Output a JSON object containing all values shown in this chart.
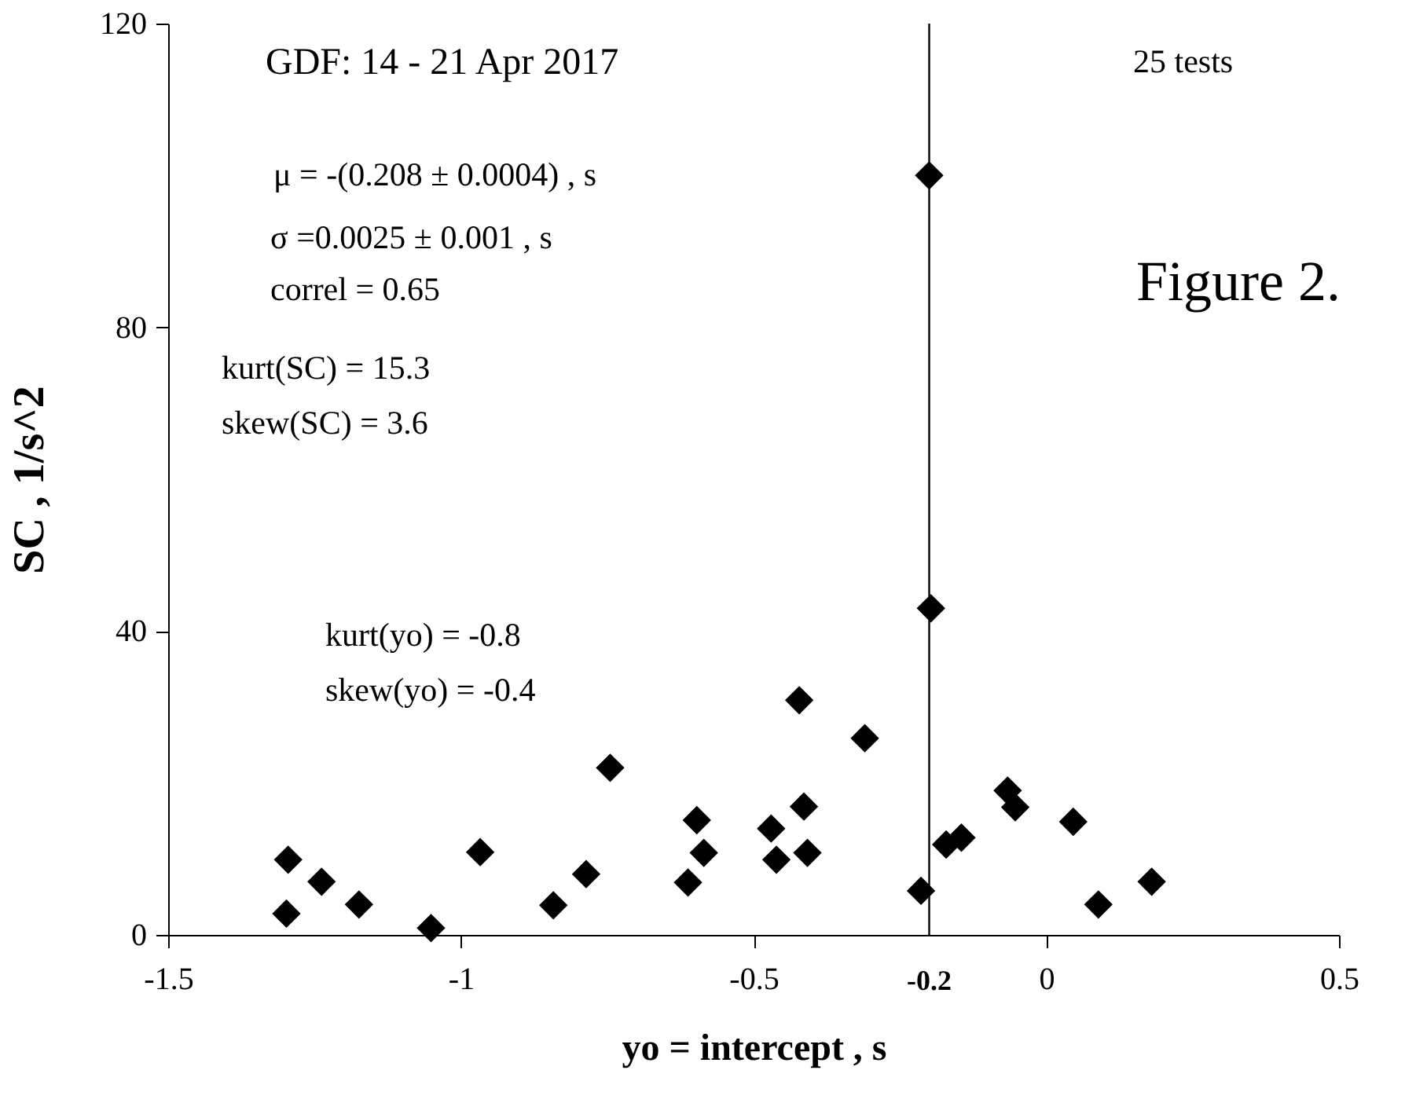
{
  "chart_data": {
    "type": "scatter",
    "xlabel": "yo = intercept  ,  s",
    "ylabel": "SC  ,  1/s^2",
    "x": [
      -1.295,
      -1.298,
      -1.238,
      -1.174,
      -1.051,
      -0.967,
      -0.842,
      -0.786,
      -0.745,
      -0.597,
      -0.585,
      -0.612,
      -0.2,
      -0.197,
      -0.422,
      -0.31,
      -0.414,
      -0.47,
      -0.461,
      -0.408,
      -0.214,
      -0.171,
      -0.145,
      -0.066,
      -0.053,
      0.046,
      0.089,
      0.18
    ],
    "series": [
      {
        "color": "#000000",
        "values": [
          9.9,
          2.8,
          7.0,
          4.0,
          0.9,
          10.9,
          3.9,
          8.0,
          22.0,
          15.1,
          10.8,
          6.9,
          100,
          43.0,
          30.9,
          25.9,
          16.9,
          14.0,
          9.9,
          10.8,
          5.8,
          11.9,
          12.8,
          19.0,
          16.8,
          14.9,
          4.0,
          7.0
        ]
      }
    ],
    "marker": "diamond",
    "xlim": [
      -1.5,
      0.5
    ],
    "xticks": [
      -1.5,
      -1,
      -0.5,
      0,
      0.5
    ],
    "ylim": [
      0,
      120
    ],
    "yticks": [
      0,
      40,
      80,
      120
    ],
    "ref_lines": [
      {
        "axis": "x",
        "value": -0.2,
        "label": "-0.2",
        "color": "#000000"
      }
    ],
    "annotations": [
      "GDF: 14 - 21 Apr 2017",
      "μ = -(0.208 ± 0.0004) ,  s",
      "σ =0.0025 ± 0.001 , s",
      "correl = 0.65",
      "kurt(SC) = 15.3",
      "skew(SC) = 3.6",
      "kurt(yo) = -0.8",
      "skew(yo) = -0.4",
      "25 tests",
      "Figure 2."
    ],
    "grid": false
  }
}
